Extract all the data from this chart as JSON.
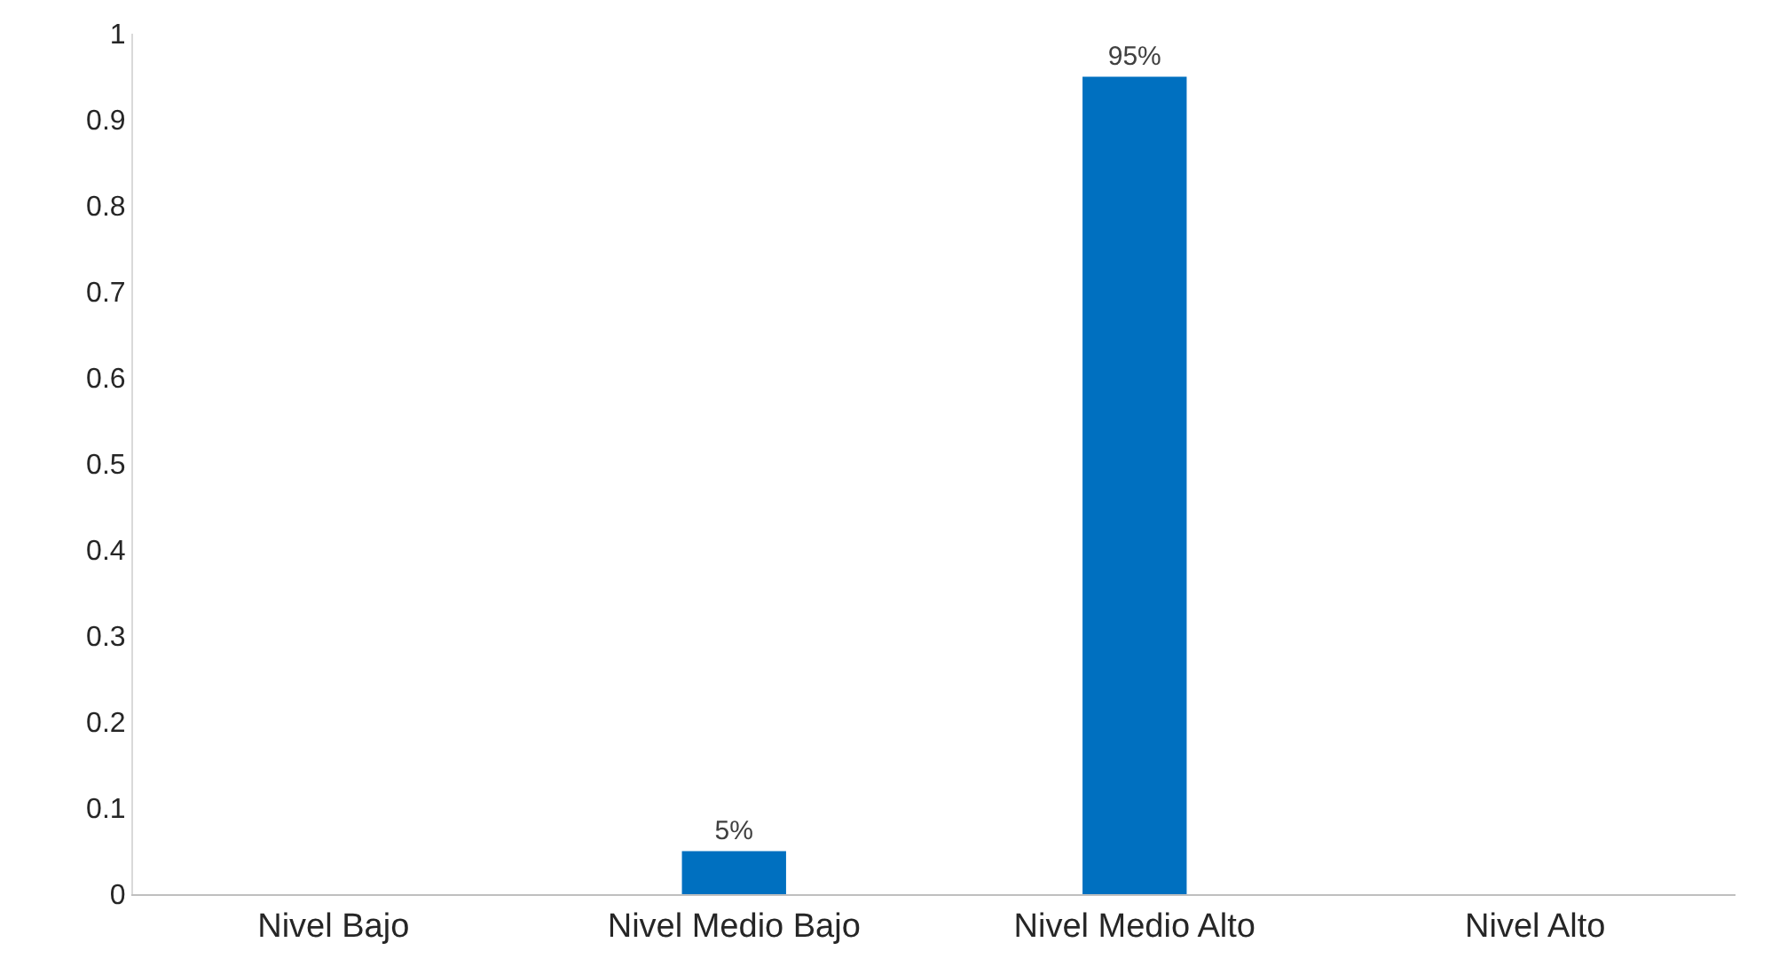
{
  "chart_data": {
    "type": "bar",
    "categories": [
      "Nivel Bajo",
      "Nivel Medio Bajo",
      "Nivel Medio Alto",
      "Nivel Alto"
    ],
    "values": [
      0,
      0.05,
      0.95,
      0
    ],
    "value_labels": [
      null,
      "5%",
      "95%",
      null
    ],
    "color": "#0070c0",
    "ylim": [
      0,
      1
    ],
    "yticks": [
      0,
      0.1,
      0.2,
      0.3,
      0.4,
      0.5,
      0.6,
      0.7,
      0.8,
      0.9,
      1
    ],
    "legend": false
  }
}
